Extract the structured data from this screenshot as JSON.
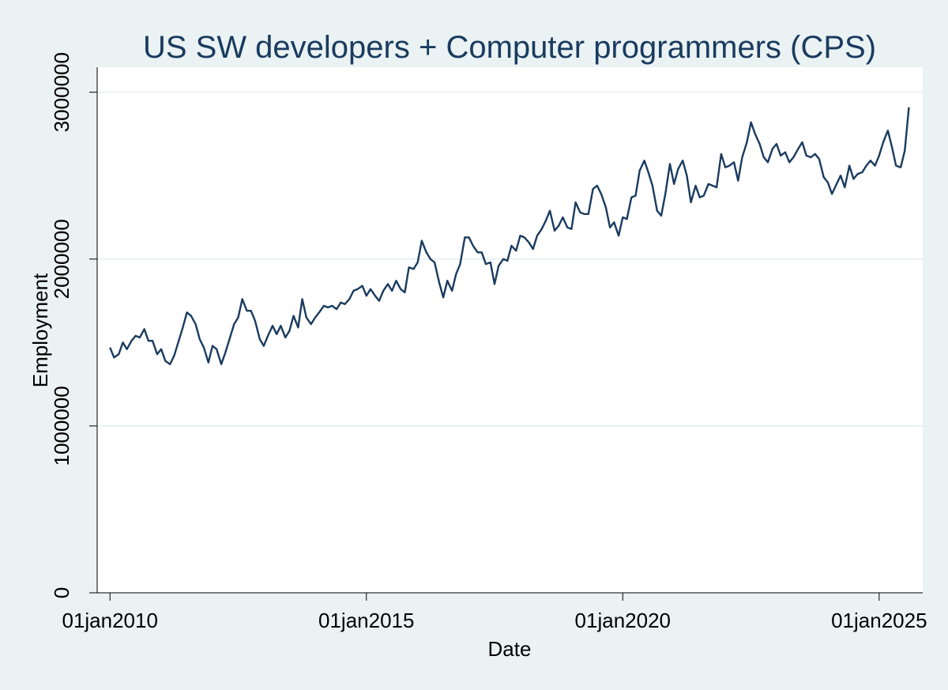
{
  "chart_data": {
    "type": "line",
    "title": "US SW developers + Computer programmers (CPS)",
    "xlabel": "Date",
    "ylabel": "Employment",
    "x_ticks": [
      {
        "value": 2010.0,
        "label": "01jan2010"
      },
      {
        "value": 2015.0,
        "label": "01jan2015"
      },
      {
        "value": 2020.0,
        "label": "01jan2020"
      },
      {
        "value": 2025.0,
        "label": "01jan2025"
      }
    ],
    "y_ticks": [
      {
        "value": 0,
        "label": "0"
      },
      {
        "value": 1000000,
        "label": "1000000"
      },
      {
        "value": 2000000,
        "label": "2000000"
      },
      {
        "value": 3000000,
        "label": "3000000"
      }
    ],
    "xlim": [
      2009.75,
      2025.85
    ],
    "ylim": [
      0,
      3150000
    ],
    "grid": "horizontal",
    "colors": {
      "background": "#eaf2f3",
      "plot": "#ffffff",
      "line": "#1a3b5f",
      "grid": "#eaf2f3"
    },
    "series": [
      {
        "name": "Employment",
        "x": [
          2010.0,
          2010.08,
          2010.17,
          2010.25,
          2010.33,
          2010.42,
          2010.5,
          2010.58,
          2010.67,
          2010.75,
          2010.83,
          2010.92,
          2011.0,
          2011.08,
          2011.17,
          2011.25,
          2011.33,
          2011.42,
          2011.5,
          2011.58,
          2011.67,
          2011.75,
          2011.83,
          2011.92,
          2012.0,
          2012.08,
          2012.17,
          2012.25,
          2012.33,
          2012.42,
          2012.5,
          2012.58,
          2012.67,
          2012.75,
          2012.83,
          2012.92,
          2013.0,
          2013.08,
          2013.17,
          2013.25,
          2013.33,
          2013.42,
          2013.5,
          2013.58,
          2013.67,
          2013.75,
          2013.83,
          2013.92,
          2014.0,
          2014.08,
          2014.17,
          2014.25,
          2014.33,
          2014.42,
          2014.5,
          2014.58,
          2014.67,
          2014.75,
          2014.83,
          2014.92,
          2015.0,
          2015.08,
          2015.17,
          2015.25,
          2015.33,
          2015.42,
          2015.5,
          2015.58,
          2015.67,
          2015.75,
          2015.83,
          2015.92,
          2016.0,
          2016.08,
          2016.17,
          2016.25,
          2016.33,
          2016.42,
          2016.5,
          2016.58,
          2016.67,
          2016.75,
          2016.83,
          2016.92,
          2017.0,
          2017.08,
          2017.17,
          2017.25,
          2017.33,
          2017.42,
          2017.5,
          2017.58,
          2017.67,
          2017.75,
          2017.83,
          2017.92,
          2018.0,
          2018.08,
          2018.17,
          2018.25,
          2018.33,
          2018.42,
          2018.5,
          2018.58,
          2018.67,
          2018.75,
          2018.83,
          2018.92,
          2019.0,
          2019.08,
          2019.17,
          2019.25,
          2019.33,
          2019.42,
          2019.5,
          2019.58,
          2019.67,
          2019.75,
          2019.83,
          2019.92,
          2020.0,
          2020.08,
          2020.17,
          2020.25,
          2020.33,
          2020.42,
          2020.5,
          2020.58,
          2020.67,
          2020.75,
          2020.83,
          2020.92,
          2021.0,
          2021.08,
          2021.17,
          2021.25,
          2021.33,
          2021.42,
          2021.5,
          2021.58,
          2021.67,
          2021.75,
          2021.83,
          2021.92,
          2022.0,
          2022.08,
          2022.17,
          2022.25,
          2022.33,
          2022.42,
          2022.5,
          2022.58,
          2022.67,
          2022.75,
          2022.83,
          2022.92,
          2023.0,
          2023.08,
          2023.17,
          2023.25,
          2023.33,
          2023.42,
          2023.5,
          2023.58,
          2023.67,
          2023.75,
          2023.83,
          2023.92,
          2024.0,
          2024.08,
          2024.17,
          2024.25,
          2024.33,
          2024.42,
          2024.5,
          2024.58,
          2024.67,
          2024.75,
          2024.83,
          2024.92,
          2025.0,
          2025.08,
          2025.17,
          2025.25,
          2025.33,
          2025.42,
          2025.5,
          2025.58
        ],
        "values": [
          1470000,
          1410000,
          1430000,
          1500000,
          1460000,
          1510000,
          1540000,
          1530000,
          1580000,
          1510000,
          1510000,
          1430000,
          1460000,
          1390000,
          1370000,
          1420000,
          1500000,
          1590000,
          1680000,
          1660000,
          1610000,
          1520000,
          1470000,
          1380000,
          1480000,
          1460000,
          1370000,
          1440000,
          1520000,
          1610000,
          1650000,
          1760000,
          1690000,
          1690000,
          1630000,
          1520000,
          1480000,
          1540000,
          1600000,
          1550000,
          1600000,
          1530000,
          1570000,
          1660000,
          1590000,
          1760000,
          1650000,
          1610000,
          1650000,
          1680000,
          1720000,
          1710000,
          1720000,
          1700000,
          1740000,
          1730000,
          1760000,
          1810000,
          1820000,
          1840000,
          1780000,
          1820000,
          1780000,
          1750000,
          1810000,
          1850000,
          1810000,
          1870000,
          1820000,
          1800000,
          1950000,
          1940000,
          1980000,
          2110000,
          2040000,
          2000000,
          1980000,
          1860000,
          1770000,
          1870000,
          1810000,
          1910000,
          1970000,
          2130000,
          2130000,
          2080000,
          2040000,
          2040000,
          1970000,
          1980000,
          1850000,
          1960000,
          2000000,
          1990000,
          2080000,
          2050000,
          2140000,
          2130000,
          2100000,
          2060000,
          2140000,
          2180000,
          2230000,
          2290000,
          2170000,
          2200000,
          2250000,
          2190000,
          2180000,
          2340000,
          2280000,
          2270000,
          2270000,
          2420000,
          2440000,
          2390000,
          2310000,
          2190000,
          2220000,
          2140000,
          2250000,
          2240000,
          2370000,
          2380000,
          2530000,
          2590000,
          2520000,
          2440000,
          2290000,
          2260000,
          2390000,
          2570000,
          2450000,
          2540000,
          2590000,
          2500000,
          2340000,
          2440000,
          2370000,
          2380000,
          2450000,
          2440000,
          2430000,
          2630000,
          2550000,
          2560000,
          2580000,
          2470000,
          2610000,
          2700000,
          2820000,
          2750000,
          2690000,
          2610000,
          2580000,
          2660000,
          2690000,
          2620000,
          2640000,
          2580000,
          2610000,
          2660000,
          2700000,
          2620000,
          2610000,
          2630000,
          2600000,
          2490000,
          2460000,
          2390000,
          2450000,
          2500000,
          2430000,
          2560000,
          2480000,
          2510000,
          2520000,
          2560000,
          2590000,
          2560000,
          2620000,
          2700000,
          2770000,
          2670000,
          2560000,
          2550000,
          2650000,
          2910000
        ]
      }
    ]
  }
}
